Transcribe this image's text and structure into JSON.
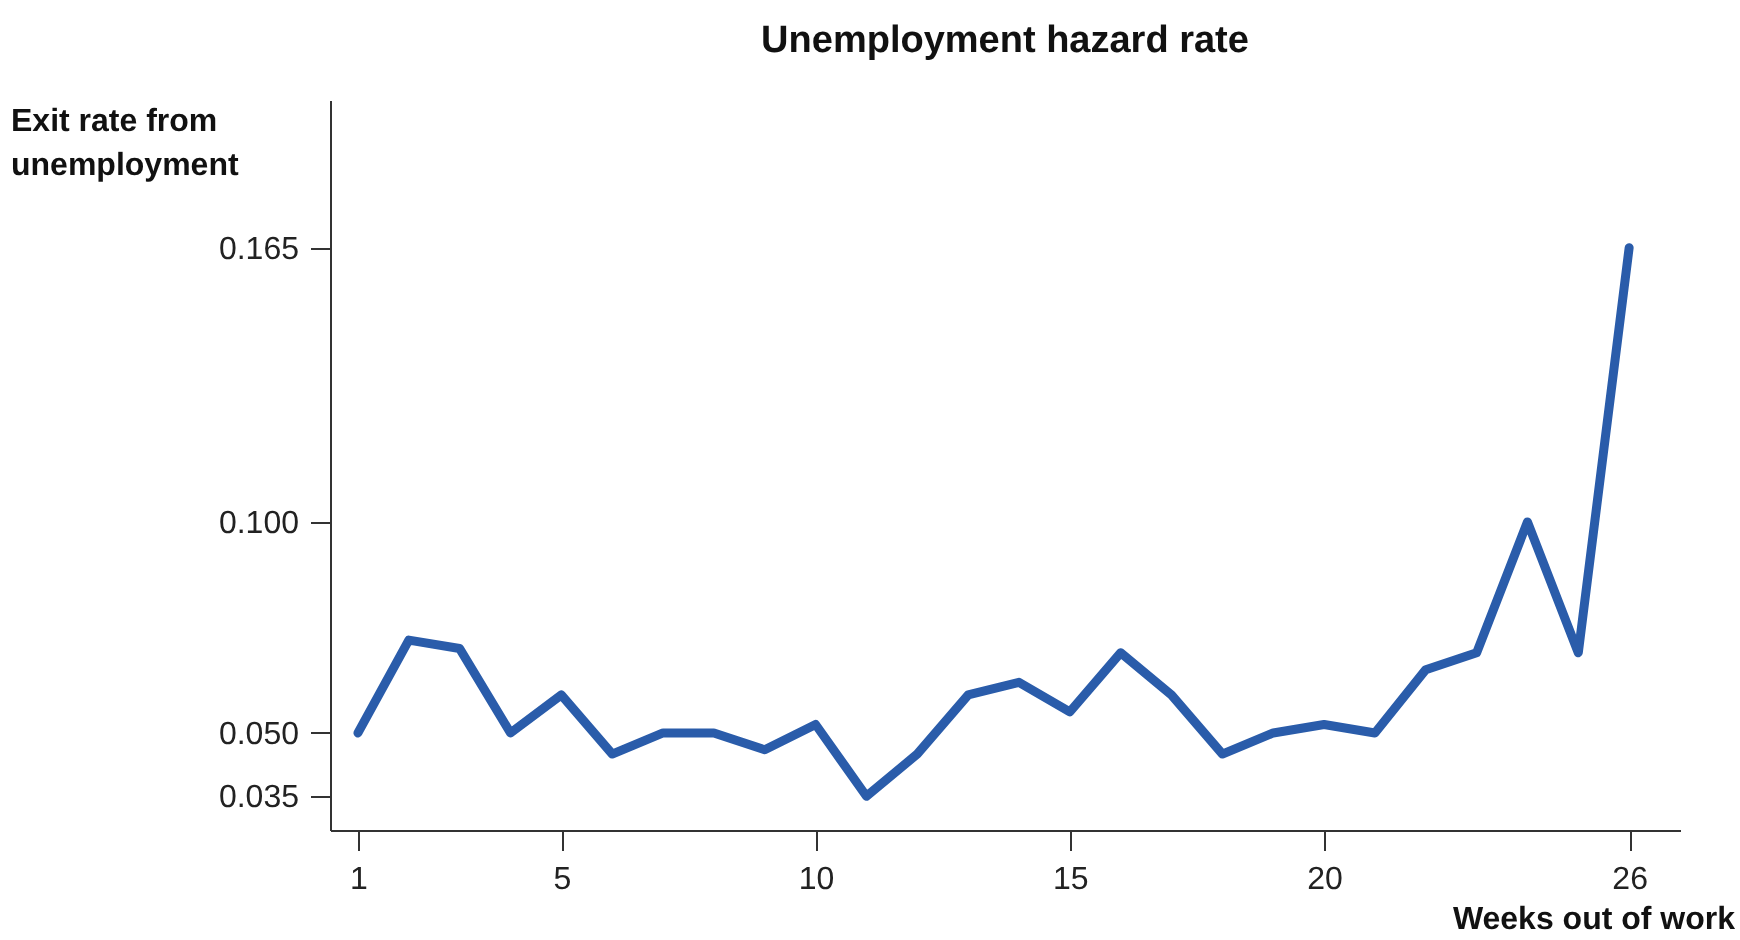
{
  "chart_data": {
    "type": "line",
    "title": "Unemployment hazard rate",
    "xlabel": "Weeks out of work",
    "ylabel": "Exit rate from unemployment",
    "x": [
      1,
      2,
      3,
      4,
      5,
      6,
      7,
      8,
      9,
      10,
      11,
      12,
      13,
      14,
      15,
      16,
      17,
      18,
      19,
      20,
      21,
      22,
      23,
      24,
      25,
      26
    ],
    "series": [
      {
        "color": "#2a5caa",
        "values": [
          0.05,
          0.072,
          0.07,
          0.05,
          0.059,
          0.045,
          0.05,
          0.05,
          0.046,
          0.052,
          0.035,
          0.045,
          0.059,
          0.062,
          0.055,
          0.069,
          0.059,
          0.045,
          0.05,
          0.052,
          0.05,
          0.065,
          0.069,
          0.1,
          0.069,
          0.165
        ]
      }
    ],
    "xlim": [
      0.45,
      27
    ],
    "ylim": [
      0.027,
      0.2
    ],
    "xticks": [
      1,
      5,
      10,
      15,
      20,
      26
    ],
    "yticks": [
      0.035,
      {
        "value": 0.05,
        "label": "0.050"
      },
      {
        "value": 0.1,
        "label": "0.100"
      },
      0.165
    ],
    "grid": false,
    "marker": "none",
    "line_style": "solid"
  }
}
